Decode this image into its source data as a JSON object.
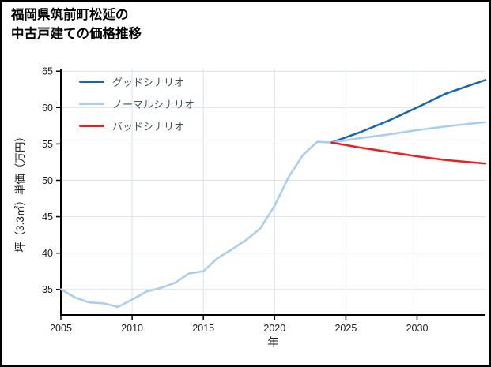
{
  "title": {
    "line1": "福岡県筑前町松延の",
    "line2": "中古戸建ての価格推移"
  },
  "chart_data": {
    "type": "line",
    "title": "福岡県筑前町松延の中古戸建ての価格推移",
    "xlabel": "年",
    "ylabel": "坪（3.3㎡）単価（万円）",
    "xlim": [
      2005,
      2034.8
    ],
    "ylim": [
      31.5,
      65.35
    ],
    "x_ticks": [
      2005,
      2010,
      2015,
      2020,
      2025,
      2030
    ],
    "y_ticks": [
      35,
      40,
      45,
      50,
      55,
      60,
      65
    ],
    "grid": true,
    "legend_position": "upper-left",
    "style": {
      "grid_color": "#d8e2ee",
      "axis_color": "#000000",
      "tick_label_color": "#1a1a1a",
      "line_width": 2.5
    },
    "legend": [
      {
        "label": "グッドシナリオ",
        "color": "#1565b4"
      },
      {
        "label": "ノーマルシナリオ",
        "color": "#a9cdf0"
      },
      {
        "label": "バッドシナリオ",
        "color": "#e8211d"
      }
    ],
    "series": [
      {
        "name": "history",
        "color": "#a9cdf0",
        "x": [
          2005,
          2006,
          2007,
          2008,
          2009,
          2010,
          2011,
          2012,
          2013,
          2014,
          2015,
          2016,
          2017,
          2018,
          2019,
          2020,
          2021,
          2022,
          2023,
          2024
        ],
        "values": [
          35.0,
          33.9,
          33.2,
          33.1,
          32.6,
          33.6,
          34.7,
          35.2,
          35.9,
          37.2,
          37.5,
          39.3,
          40.5,
          41.8,
          43.4,
          46.5,
          50.5,
          53.5,
          55.3,
          55.2
        ]
      },
      {
        "name": "グッドシナリオ",
        "color": "#1565b4",
        "x": [
          2024,
          2026,
          2028,
          2030,
          2032,
          2034.8
        ],
        "values": [
          55.2,
          56.6,
          58.2,
          60.0,
          61.9,
          63.8
        ]
      },
      {
        "name": "ノーマルシナリオ",
        "color": "#a9cdf0",
        "x": [
          2024,
          2026,
          2028,
          2030,
          2032,
          2034.8
        ],
        "values": [
          55.2,
          55.8,
          56.3,
          56.9,
          57.4,
          58.0
        ]
      },
      {
        "name": "バッドシナリオ",
        "color": "#e8211d",
        "x": [
          2024,
          2026,
          2028,
          2030,
          2032,
          2034.8
        ],
        "values": [
          55.2,
          54.5,
          53.9,
          53.3,
          52.8,
          52.3
        ]
      }
    ]
  }
}
